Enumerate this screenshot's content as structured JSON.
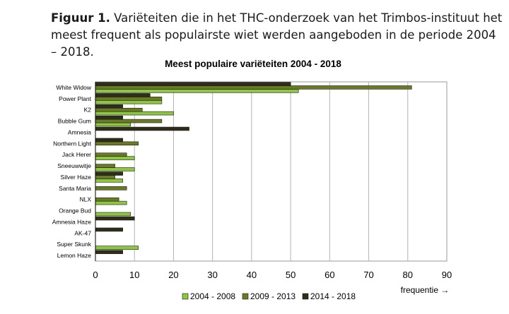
{
  "figure": {
    "label": "Figuur 1.",
    "caption": "Variëteiten die in het THC-onderzoek van het Trimbos-instituut het meest frequent als populairste wiet werden aangeboden in de periode 2004 – 2018."
  },
  "chart_data": {
    "type": "bar",
    "orientation": "horizontal",
    "title": "Meest populaire variëteiten 2004 - 2018",
    "xlabel": "frequentie →",
    "ylabel": "",
    "xlim": [
      0,
      90
    ],
    "xticks": [
      0,
      10,
      20,
      30,
      40,
      50,
      60,
      70,
      80,
      90
    ],
    "grid": true,
    "legend": "bottom",
    "categories": [
      "White Widow",
      "Power Plant",
      "K2",
      "Bubble Gum",
      "Amnesia",
      "Northern Light",
      "Jack Herer",
      "Sneeuwwitje",
      "Silver Haze",
      "Santa Maria",
      "NLX",
      "Orange Bud",
      "Amnesia Haze",
      "AK-47",
      "Super Skunk",
      "Lemon Haze"
    ],
    "series": [
      {
        "name": "2004 - 2008",
        "color": "#8dc63f",
        "values": [
          52,
          17,
          20,
          9,
          0,
          0,
          10,
          10,
          7,
          0,
          8,
          9,
          0,
          0,
          11,
          0
        ]
      },
      {
        "name": "2009 - 2013",
        "color": "#6b7a24",
        "values": [
          81,
          17,
          12,
          17,
          0,
          11,
          8,
          5,
          5,
          8,
          6,
          0,
          0,
          0,
          0,
          0
        ]
      },
      {
        "name": "2014 - 2018",
        "color": "#2d2d1a",
        "values": [
          50,
          14,
          7,
          7,
          24,
          7,
          0,
          0,
          7,
          0,
          0,
          0,
          10,
          7,
          0,
          7
        ]
      }
    ]
  }
}
